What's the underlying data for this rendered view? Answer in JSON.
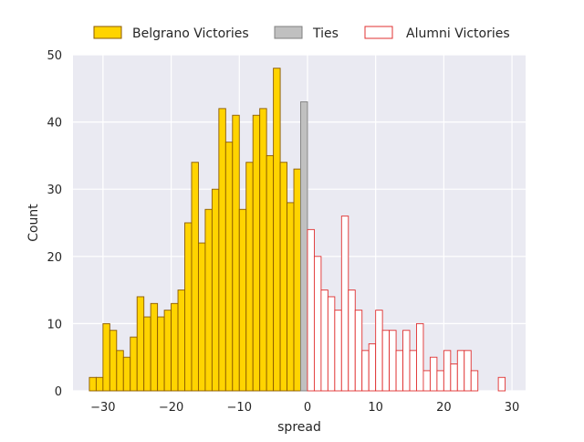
{
  "chart_data": {
    "type": "bar",
    "xlabel": "spread",
    "ylabel": "Count",
    "xlim": [
      -34.4,
      32.0
    ],
    "ylim": [
      0,
      50
    ],
    "xticks": [
      -30,
      -20,
      -10,
      0,
      10,
      20,
      30
    ],
    "yticks": [
      0,
      10,
      20,
      30,
      40,
      50
    ],
    "xtick_labels": [
      "−30",
      "−20",
      "−10",
      "0",
      "10",
      "20",
      "30"
    ],
    "ytick_labels": [
      "0",
      "10",
      "20",
      "30",
      "40",
      "50"
    ],
    "grid": true,
    "legend_placement": "top-center, above plot",
    "background": "#eaeaf2",
    "bin_width": 1,
    "series": [
      {
        "name": "Belgrano Victories",
        "fill": "#ffd400",
        "edge": "#8b5a00",
        "bins": [
          [
            -32,
            2
          ],
          [
            -31,
            2
          ],
          [
            -30,
            10
          ],
          [
            -29,
            9
          ],
          [
            -28,
            6
          ],
          [
            -27,
            5
          ],
          [
            -26,
            8
          ],
          [
            -25,
            14
          ],
          [
            -24,
            11
          ],
          [
            -23,
            13
          ],
          [
            -22,
            11
          ],
          [
            -21,
            12
          ],
          [
            -20,
            13
          ],
          [
            -19,
            15
          ],
          [
            -18,
            25
          ],
          [
            -17,
            34
          ],
          [
            -16,
            22
          ],
          [
            -15,
            27
          ],
          [
            -14,
            30
          ],
          [
            -13,
            42
          ],
          [
            -12,
            37
          ],
          [
            -11,
            41
          ],
          [
            -10,
            27
          ],
          [
            -9,
            34
          ],
          [
            -8,
            41
          ],
          [
            -7,
            42
          ],
          [
            -6,
            35
          ],
          [
            -5,
            48
          ],
          [
            -4,
            34
          ],
          [
            -3,
            28
          ],
          [
            -2,
            33
          ]
        ]
      },
      {
        "name": "Ties",
        "fill": "#c0c0c0",
        "edge": "#808080",
        "bins": [
          [
            -1,
            43
          ]
        ]
      },
      {
        "name": "Alumni Victories",
        "fill": "#ffffff",
        "edge": "#e03030",
        "bins": [
          [
            0,
            24
          ],
          [
            1,
            20
          ],
          [
            2,
            15
          ],
          [
            3,
            14
          ],
          [
            4,
            12
          ],
          [
            5,
            26
          ],
          [
            6,
            15
          ],
          [
            7,
            12
          ],
          [
            8,
            6
          ],
          [
            9,
            7
          ],
          [
            10,
            12
          ],
          [
            11,
            9
          ],
          [
            12,
            9
          ],
          [
            13,
            6
          ],
          [
            14,
            9
          ],
          [
            15,
            6
          ],
          [
            16,
            10
          ],
          [
            17,
            3
          ],
          [
            18,
            5
          ],
          [
            19,
            3
          ],
          [
            20,
            6
          ],
          [
            21,
            4
          ],
          [
            22,
            6
          ],
          [
            23,
            6
          ],
          [
            24,
            3
          ],
          [
            28,
            2
          ]
        ]
      }
    ]
  }
}
